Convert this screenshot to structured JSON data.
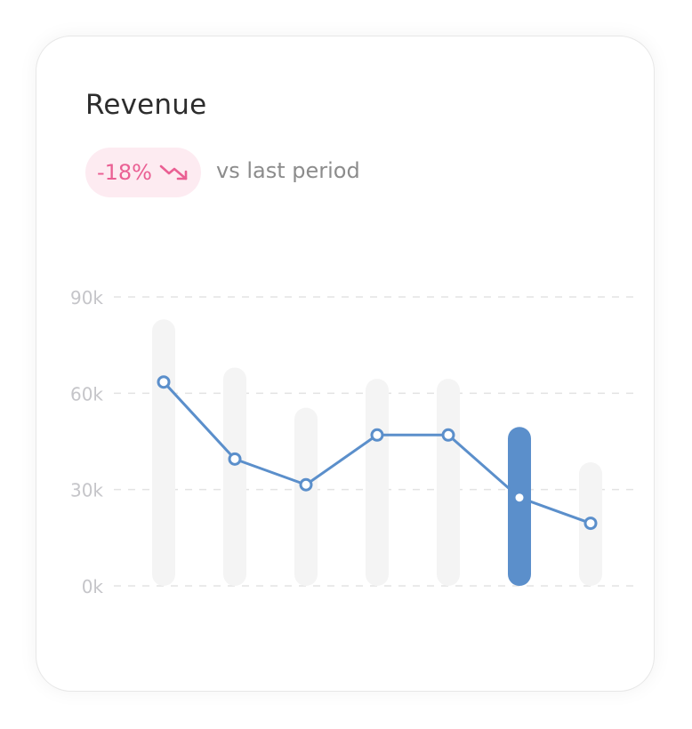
{
  "card": {
    "title": "Revenue",
    "change": "-18%",
    "trend_icon": "trending-down-icon",
    "comparison": "vs last period"
  },
  "colors": {
    "accent": "#5b8fcb",
    "bar_muted": "#f4f4f4",
    "negative": "#ea5f93",
    "negative_bg": "#fdebf1",
    "grid": "#e3e3e3",
    "tick": "#c5c5c9"
  },
  "chart_data": {
    "type": "bar",
    "title": "Revenue",
    "xlabel": "",
    "ylabel": "",
    "ylim": [
      0,
      90000
    ],
    "yticks": [
      0,
      30000,
      60000,
      90000
    ],
    "ytick_labels": [
      "0k",
      "30k",
      "60k",
      "90k"
    ],
    "grid": true,
    "highlight_index": 5,
    "series": [
      {
        "type": "bar",
        "values": [
          83000,
          68000,
          55500,
          64500,
          64500,
          49500,
          38500
        ]
      },
      {
        "type": "line",
        "values": [
          63500,
          39500,
          31500,
          47000,
          47000,
          27500,
          19500
        ]
      }
    ]
  }
}
